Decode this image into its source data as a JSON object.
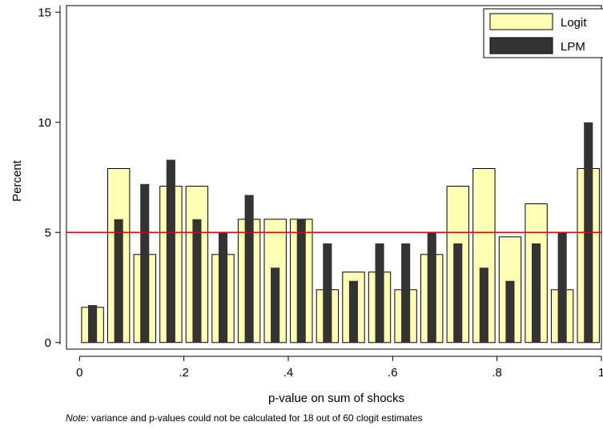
{
  "chart_data": {
    "type": "bar",
    "xlabel": "p-value on sum of shocks",
    "ylabel": "Percent",
    "xlim": [
      -0.025,
      1.0
    ],
    "ylim": [
      -0.3,
      15.3
    ],
    "x_ticks": [
      0,
      0.2,
      0.4,
      0.6,
      0.8,
      1.0
    ],
    "x_tick_labels": [
      "0",
      ".2",
      ".4",
      ".6",
      ".8",
      "1"
    ],
    "y_ticks": [
      0,
      5,
      10,
      15
    ],
    "y_tick_labels": [
      "0",
      "5",
      "10",
      "15"
    ],
    "bin_width": 0.05,
    "bin_centers": [
      0.025,
      0.075,
      0.125,
      0.175,
      0.225,
      0.275,
      0.325,
      0.375,
      0.425,
      0.475,
      0.525,
      0.575,
      0.625,
      0.675,
      0.725,
      0.775,
      0.825,
      0.875,
      0.925,
      0.975
    ],
    "series": [
      {
        "name": "Logit",
        "color": "#ffffb3",
        "values": [
          1.6,
          7.9,
          4.0,
          7.1,
          7.1,
          4.0,
          5.6,
          5.6,
          5.6,
          2.4,
          3.2,
          3.2,
          2.4,
          4.0,
          7.1,
          7.9,
          4.8,
          6.3,
          2.4,
          7.9
        ]
      },
      {
        "name": "LPM",
        "color": "#333333",
        "values": [
          1.7,
          5.6,
          7.2,
          8.3,
          5.6,
          5.0,
          6.7,
          3.4,
          5.6,
          4.5,
          2.8,
          4.5,
          4.5,
          5.0,
          4.5,
          3.4,
          2.8,
          4.5,
          5.0,
          10.0
        ]
      }
    ],
    "reference_line": {
      "y": 5,
      "color": "#cc0000"
    },
    "legend_position": "top-right",
    "note_prefix": "Note",
    "note_text": ": variance and p-values could not be calculated for 18 out of 60 clogit estimates"
  }
}
